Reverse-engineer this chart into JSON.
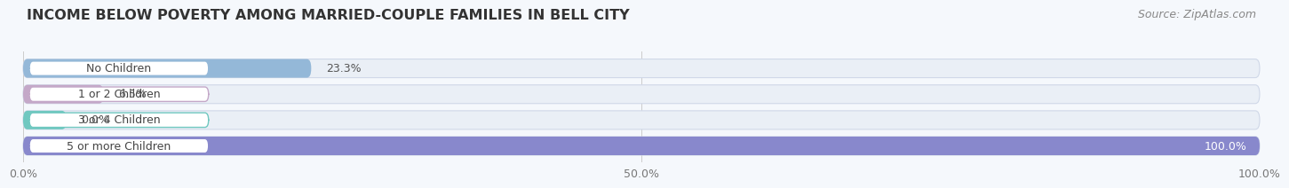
{
  "title": "INCOME BELOW POVERTY AMONG MARRIED-COUPLE FAMILIES IN BELL CITY",
  "source": "Source: ZipAtlas.com",
  "categories": [
    "No Children",
    "1 or 2 Children",
    "3 or 4 Children",
    "5 or more Children"
  ],
  "values": [
    23.3,
    6.5,
    0.0,
    100.0
  ],
  "bar_colors": [
    "#94b8d8",
    "#c4a8c8",
    "#70c8c0",
    "#8888cc"
  ],
  "bar_bg_color": "#eaeff6",
  "label_bg_color": "#ffffff",
  "label_border_colors": [
    "#94b8d8",
    "#c4a8c8",
    "#70c8c0",
    "#8888cc"
  ],
  "xlim": [
    0,
    100
  ],
  "xticks": [
    0.0,
    50.0,
    100.0
  ],
  "xtick_labels": [
    "0.0%",
    "50.0%",
    "100.0%"
  ],
  "title_fontsize": 11.5,
  "source_fontsize": 9,
  "label_fontsize": 9,
  "value_fontsize": 9,
  "tick_fontsize": 9,
  "bar_height": 0.72,
  "background_color": "#f5f8fc",
  "value_labels": [
    "23.3%",
    "6.5%",
    "0.0%",
    "100.0%"
  ]
}
